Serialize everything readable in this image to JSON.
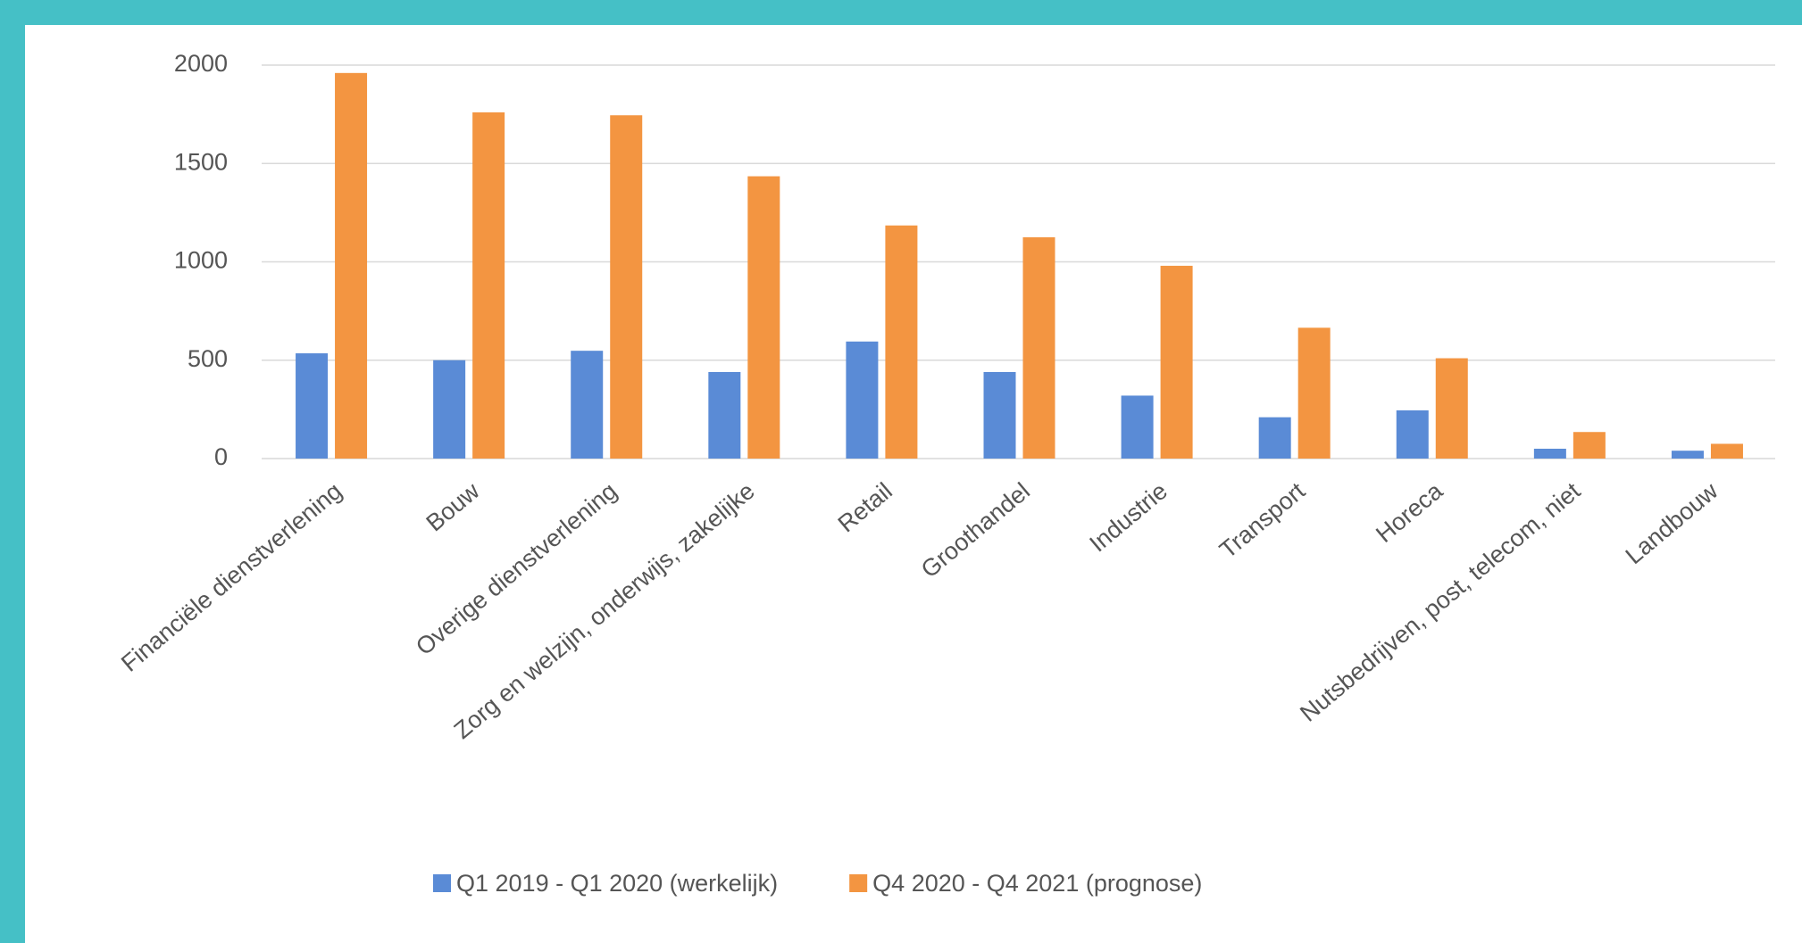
{
  "chart_data": {
    "type": "bar",
    "categories": [
      "Financiële dienstverlening",
      "Bouw",
      "Overige dienstverlening",
      "Zorg en welzijn, onderwijs, zakelijke",
      "Retail",
      "Groothandel",
      "Industrie",
      "Transport",
      "Horeca",
      "Nutsbedrijven, post, telecom, niet",
      "Landbouw"
    ],
    "series": [
      {
        "name": "Q1 2019 - Q1 2020 (werkelijk)",
        "color": "#5a8bd6",
        "values": [
          535,
          500,
          548,
          440,
          595,
          440,
          320,
          210,
          245,
          50,
          40
        ]
      },
      {
        "name": "Q4 2020 - Q4 2021 (prognose)",
        "color": "#f39541",
        "values": [
          1960,
          1760,
          1745,
          1435,
          1185,
          1125,
          980,
          665,
          510,
          135,
          75
        ]
      }
    ],
    "ylim": [
      0,
      2000
    ],
    "yticks": [
      0,
      500,
      1000,
      1500,
      2000
    ],
    "grid": true,
    "legend": "bottom"
  }
}
